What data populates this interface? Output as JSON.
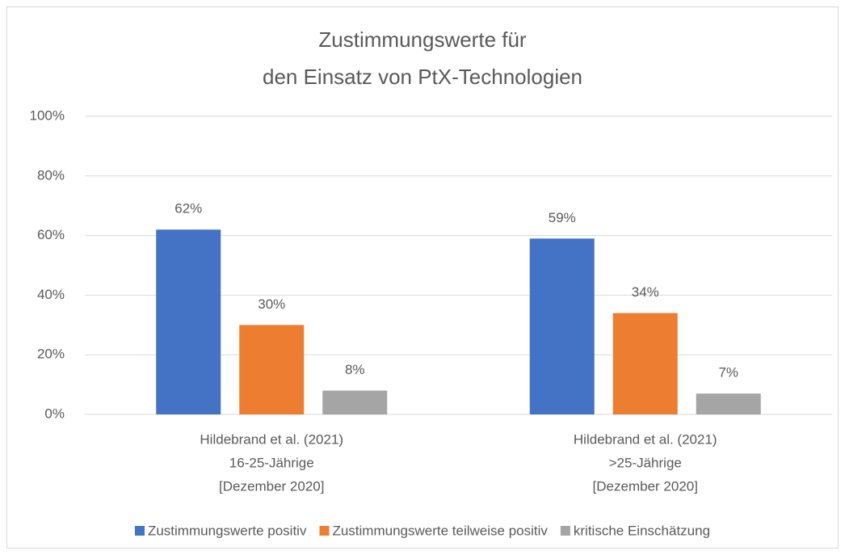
{
  "chart_data": {
    "type": "bar",
    "title": [
      "Zustimmungswerte für",
      "den Einsatz von PtX-Technologien"
    ],
    "categories": [
      [
        "Hildebrand et al. (2021)",
        "16-25-Jährige",
        "[Dezember 2020]"
      ],
      [
        "Hildebrand et al. (2021)",
        ">25-Jährige",
        "[Dezember 2020]"
      ]
    ],
    "series": [
      {
        "name": "Zustimmungswerte positiv",
        "color": "#4472c4",
        "values": [
          62,
          59
        ],
        "value_labels": [
          "62%",
          "59%"
        ]
      },
      {
        "name": "Zustimmungswerte teilweise positiv",
        "color": "#ed7d31",
        "values": [
          30,
          34
        ],
        "value_labels": [
          "30%",
          "34%"
        ]
      },
      {
        "name": "kritische Einschätzung",
        "color": "#a5a5a5",
        "values": [
          8,
          7
        ],
        "value_labels": [
          "8%",
          "7%"
        ]
      }
    ],
    "ylim": [
      0,
      100
    ],
    "yticks": [
      {
        "value": 0,
        "label": "0%"
      },
      {
        "value": 20,
        "label": "20%"
      },
      {
        "value": 40,
        "label": "40%"
      },
      {
        "value": 60,
        "label": "60%"
      },
      {
        "value": 80,
        "label": "80%"
      },
      {
        "value": 100,
        "label": "100%"
      }
    ],
    "grid": true,
    "legend": "bottom"
  }
}
